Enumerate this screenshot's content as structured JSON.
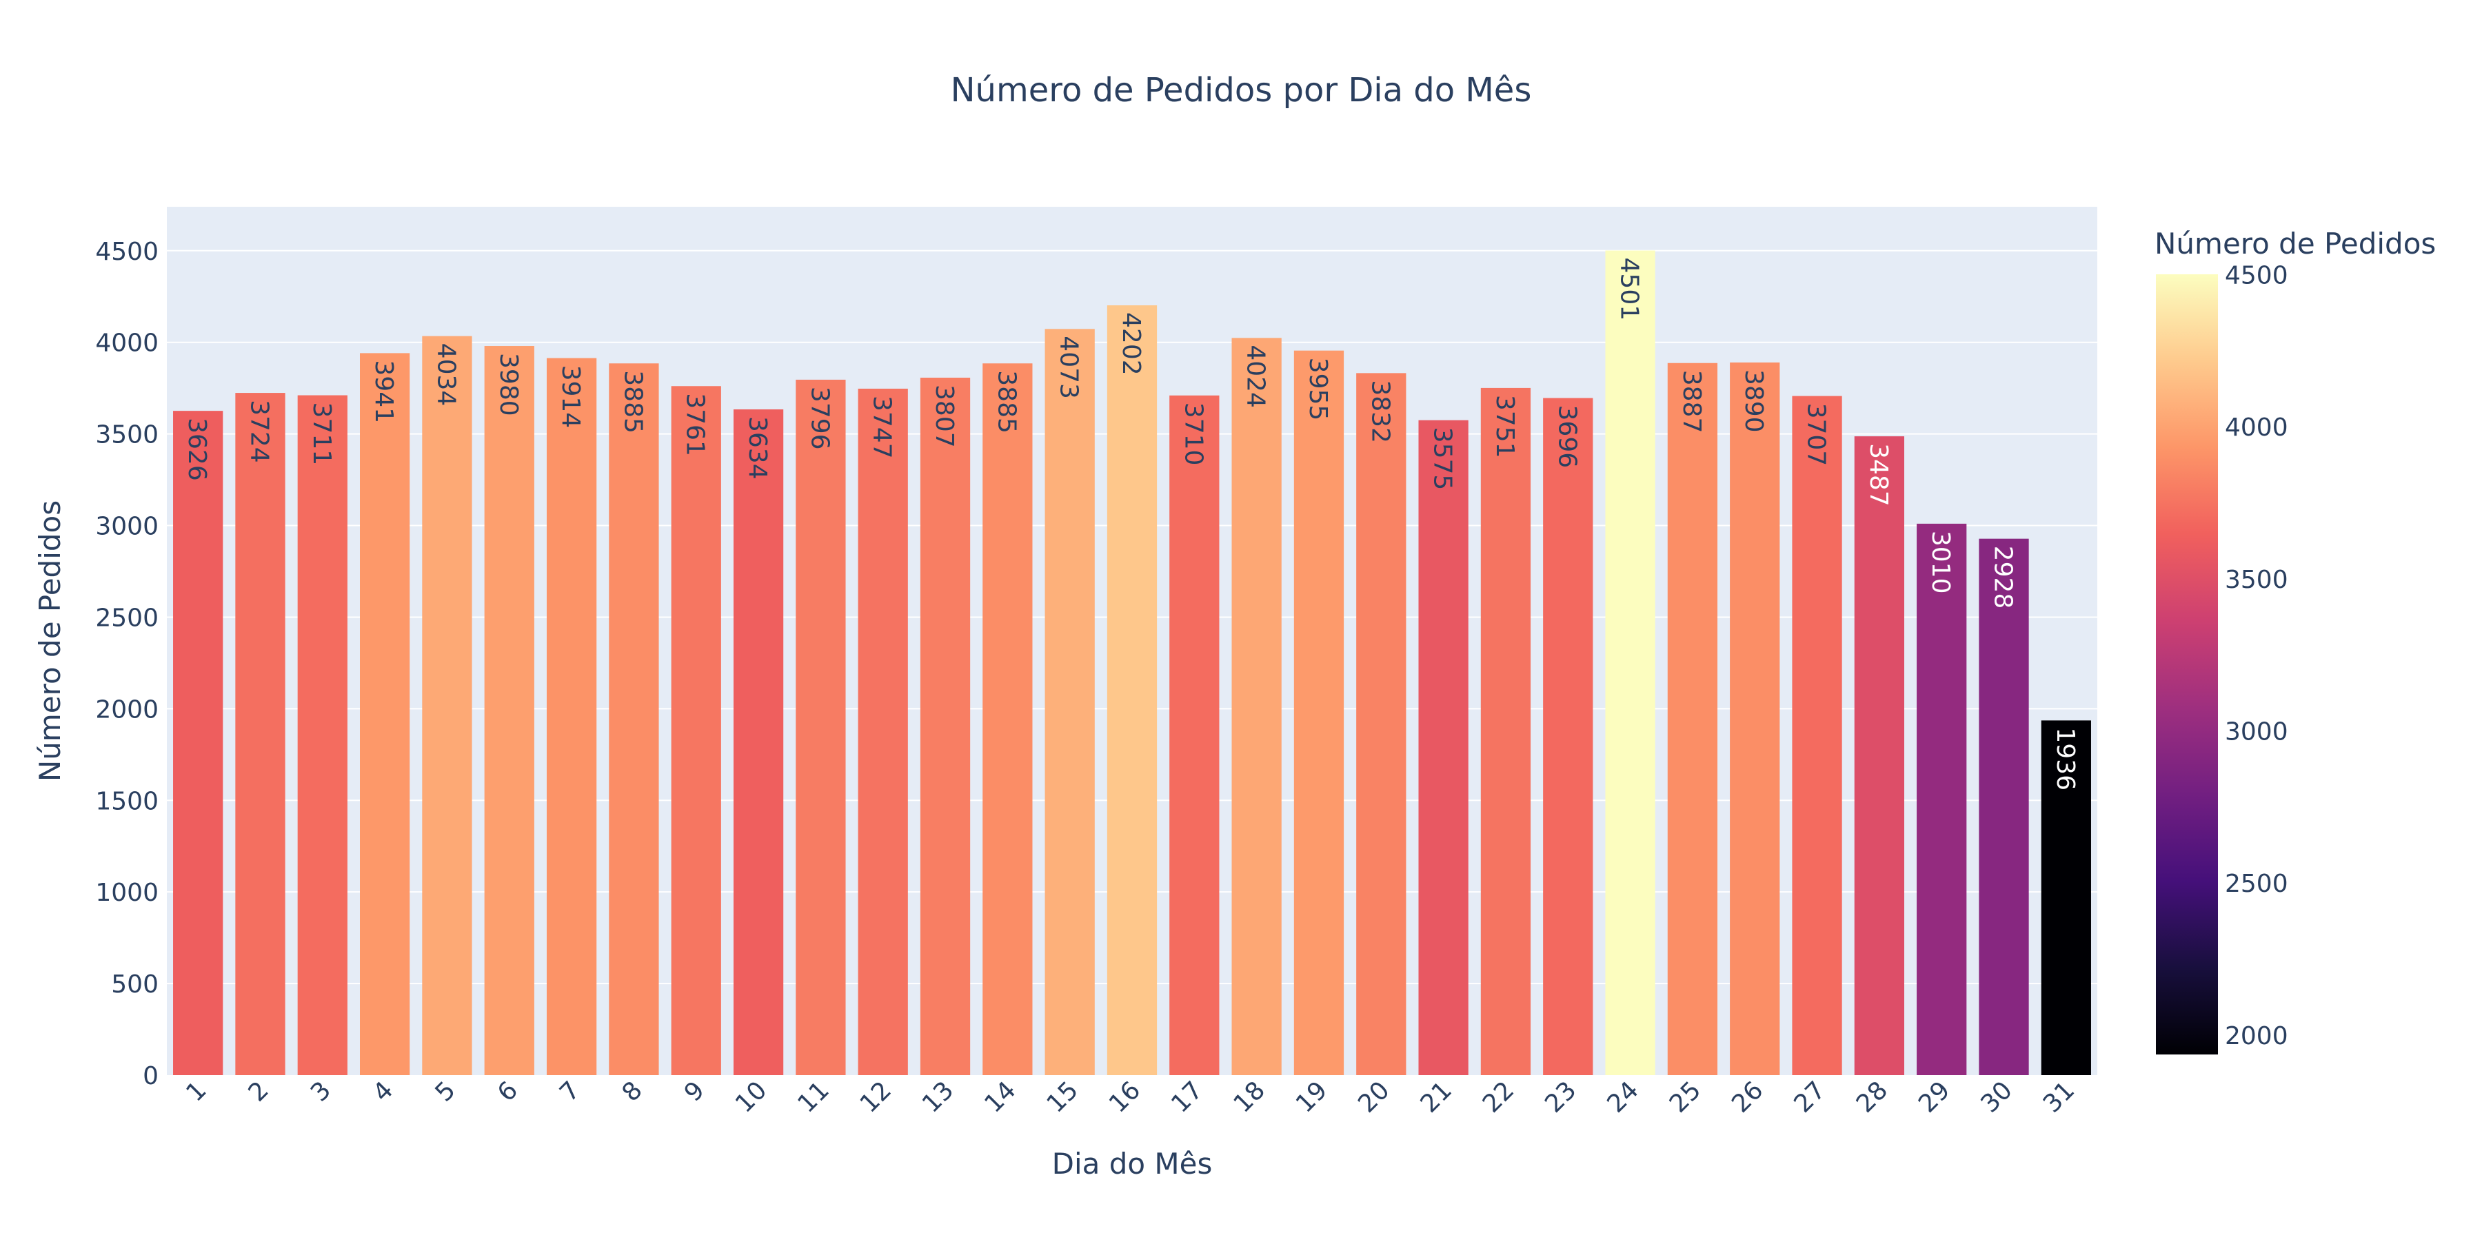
{
  "chart_data": {
    "type": "bar",
    "title": "Número de Pedidos por Dia do Mês",
    "xlabel": "Dia do Mês",
    "ylabel": "Número de Pedidos",
    "categories": [
      "1",
      "2",
      "3",
      "4",
      "5",
      "6",
      "7",
      "8",
      "9",
      "10",
      "11",
      "12",
      "13",
      "14",
      "15",
      "16",
      "17",
      "18",
      "19",
      "20",
      "21",
      "22",
      "23",
      "24",
      "25",
      "26",
      "27",
      "28",
      "29",
      "30",
      "31"
    ],
    "values": [
      3626,
      3724,
      3711,
      3941,
      4034,
      3980,
      3914,
      3885,
      3761,
      3634,
      3796,
      3747,
      3807,
      3885,
      4073,
      4202,
      3710,
      4024,
      3955,
      3832,
      3575,
      3751,
      3696,
      4501,
      3887,
      3890,
      3707,
      3487,
      3010,
      2928,
      1936
    ],
    "ylim": [
      0,
      4740
    ],
    "y_ticks": [
      0,
      500,
      1000,
      1500,
      2000,
      2500,
      3000,
      3500,
      4000,
      4500
    ],
    "grid": true,
    "data_labels": "inside-end, rotated 90°",
    "colorbar": {
      "title": "Número de Pedidos",
      "min": 1936,
      "max": 4501,
      "ticks": [
        2000,
        2500,
        3000,
        3500,
        4000,
        4500
      ],
      "colorscale": "magma",
      "placement": "right"
    },
    "colors": {
      "plot_bg": "#E5ECF6",
      "grid": "#FFFFFF",
      "text": "#2A3F5F",
      "tick_text": "#2A3F5F"
    }
  }
}
